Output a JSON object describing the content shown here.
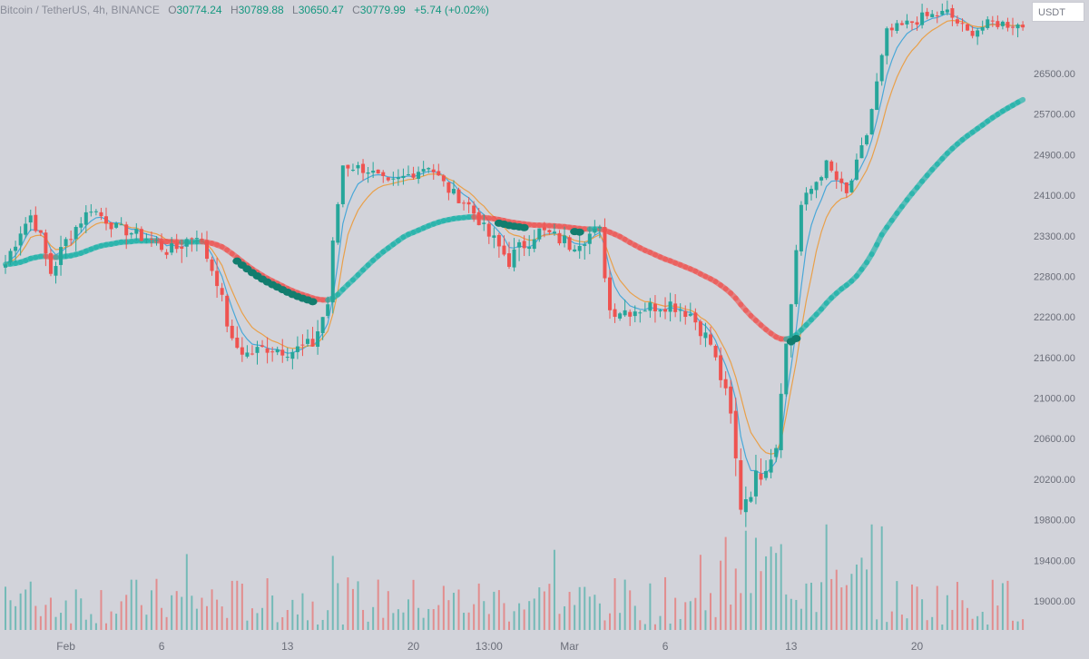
{
  "header": {
    "symbol": "Bitcoin / TetherUS, 4h, BINANCE",
    "o_label": "O",
    "o_value": "30774.24",
    "h_label": "H",
    "h_value": "30789.88",
    "l_label": "L",
    "l_value": "30650.47",
    "c_label": "C",
    "c_value": "30779.99",
    "change": "+5.74 (+0.02%)"
  },
  "currency_selector": "USDT",
  "colors": {
    "background": "#d2d3da",
    "up": "#26a69a",
    "down": "#ef5350",
    "ema_fast": "#4aa8d8",
    "ema_slow": "#e9a04a",
    "ema_long_up": "#17b2a8",
    "ema_long_down": "#ef5350",
    "signal_dot": "#127d6e"
  },
  "chart_data": {
    "type": "candlestick",
    "title": "Bitcoin / TetherUS, 4h, BINANCE",
    "ylim": [
      18600,
      27600
    ],
    "yticks": [
      26500,
      25700,
      24900,
      24100,
      23300,
      22800,
      22200,
      21600,
      21000,
      20600,
      20200,
      19800,
      19400,
      19000
    ],
    "ytick_labels": [
      "26500.00",
      "25700.00",
      "24900.00",
      "24100.00",
      "23300.00",
      "22800.00",
      "22200.00",
      "21600.00",
      "21000.00",
      "20600.00",
      "20200.00",
      "19800.00",
      "19400.00",
      "19000.00"
    ],
    "xtick_labels": [
      "Feb",
      "6",
      "13",
      "20",
      "13:00",
      "Mar",
      "6",
      "13",
      "20"
    ],
    "xtick_bar_index": [
      12,
      31,
      56,
      81,
      96,
      112,
      131,
      156,
      181
    ],
    "bar_count": 203,
    "price_path": [
      [
        0,
        22950
      ],
      [
        5,
        23700
      ],
      [
        9,
        22850
      ],
      [
        17,
        23850
      ],
      [
        22,
        23450
      ],
      [
        29,
        23250
      ],
      [
        33,
        23100
      ],
      [
        38,
        23350
      ],
      [
        42,
        22750
      ],
      [
        45,
        21800
      ],
      [
        48,
        21650
      ],
      [
        52,
        21750
      ],
      [
        57,
        21700
      ],
      [
        61,
        21800
      ],
      [
        64,
        22400
      ],
      [
        67,
        24700
      ],
      [
        72,
        24600
      ],
      [
        76,
        24300
      ],
      [
        80,
        24500
      ],
      [
        84,
        24700
      ],
      [
        88,
        24200
      ],
      [
        92,
        23900
      ],
      [
        96,
        23300
      ],
      [
        100,
        23000
      ],
      [
        106,
        23400
      ],
      [
        112,
        23200
      ],
      [
        118,
        23400
      ],
      [
        120,
        22300
      ],
      [
        124,
        22300
      ],
      [
        132,
        22400
      ],
      [
        136,
        22250
      ],
      [
        140,
        21800
      ],
      [
        144,
        20800
      ],
      [
        146,
        19950
      ],
      [
        149,
        20200
      ],
      [
        153,
        20550
      ],
      [
        156,
        22400
      ],
      [
        158,
        23900
      ],
      [
        163,
        24700
      ],
      [
        167,
        24100
      ],
      [
        171,
        25300
      ],
      [
        175,
        27300
      ],
      [
        182,
        27600
      ],
      [
        187,
        27700
      ],
      [
        191,
        27300
      ],
      [
        196,
        27500
      ],
      [
        202,
        27450
      ]
    ],
    "moving_averages": [
      {
        "name": "",
        "length": 5,
        "color_key": "ema_fast"
      },
      {
        "name": "",
        "length": 9,
        "color_key": "ema_slow"
      },
      {
        "name": "",
        "length": 55,
        "color_key": "ema_long_up"
      }
    ],
    "signal_bar_ranges": [
      [
        46,
        61
      ],
      [
        98,
        103
      ],
      [
        113,
        114
      ],
      [
        156,
        157
      ]
    ],
    "volume_panel": {
      "shown": true,
      "relative_range": [
        0.05,
        1
      ]
    },
    "grid": false,
    "legend": "none"
  }
}
